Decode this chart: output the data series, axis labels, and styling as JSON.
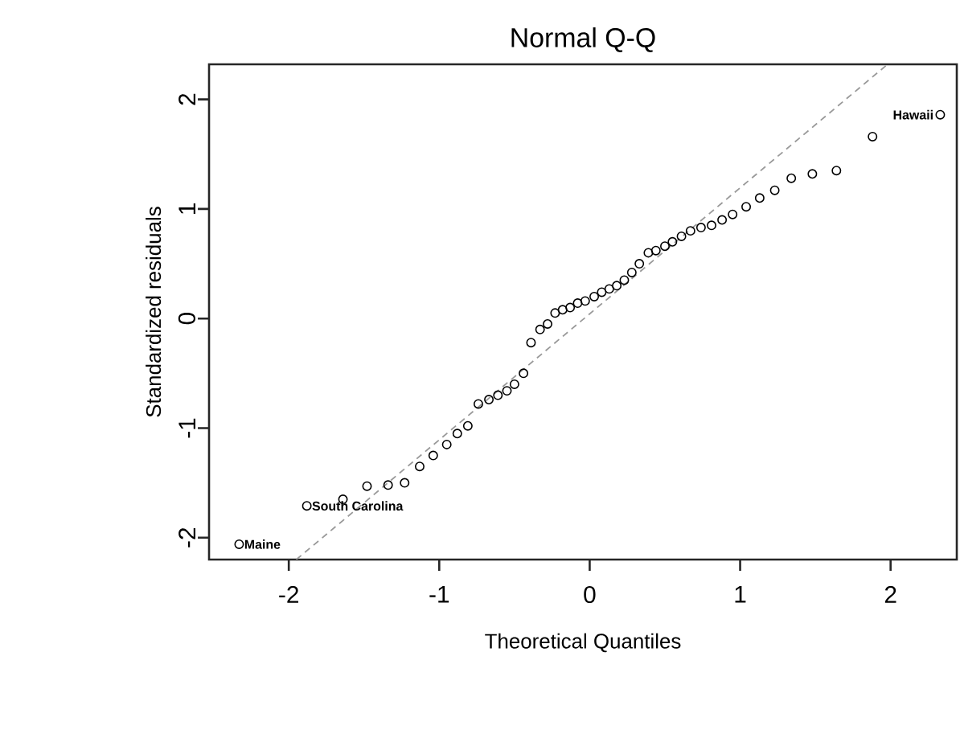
{
  "chart_data": {
    "type": "scatter",
    "title": "Normal Q-Q",
    "xlabel": "Theoretical Quantiles",
    "ylabel": "Standardized residuals",
    "xlim": [
      -2.53,
      2.44
    ],
    "ylim": [
      -2.2,
      2.32
    ],
    "xticks": [
      -2,
      -1,
      0,
      1,
      2
    ],
    "yticks": [
      -2,
      -1,
      0,
      1,
      2
    ],
    "series": [
      {
        "type": "line",
        "color": "#999999",
        "line_style": "dashed",
        "marker": "none",
        "x": [
          -1.95,
          1.98
        ],
        "values": [
          -2.2,
          2.32
        ]
      },
      {
        "color": "#000000",
        "marker": "circle",
        "x": [
          -2.33,
          -1.88,
          -1.64,
          -1.48,
          -1.34,
          -1.23,
          -1.13,
          -1.04,
          -0.95,
          -0.88,
          -0.81,
          -0.74,
          -0.67,
          -0.61,
          -0.55,
          -0.5,
          -0.44,
          -0.39,
          -0.33,
          -0.28,
          -0.23,
          -0.18,
          -0.13,
          -0.08,
          -0.03,
          0.03,
          0.08,
          0.13,
          0.18,
          0.23,
          0.28,
          0.33,
          0.39,
          0.44,
          0.5,
          0.55,
          0.61,
          0.67,
          0.74,
          0.81,
          0.88,
          0.95,
          1.04,
          1.13,
          1.23,
          1.34,
          1.48,
          1.64,
          1.88,
          2.33
        ],
        "values": [
          -2.06,
          -1.71,
          -1.65,
          -1.53,
          -1.52,
          -1.5,
          -1.35,
          -1.25,
          -1.15,
          -1.05,
          -0.98,
          -0.78,
          -0.74,
          -0.7,
          -0.66,
          -0.6,
          -0.5,
          -0.22,
          -0.1,
          -0.05,
          0.05,
          0.08,
          0.1,
          0.14,
          0.16,
          0.2,
          0.24,
          0.27,
          0.3,
          0.35,
          0.42,
          0.5,
          0.6,
          0.62,
          0.66,
          0.7,
          0.75,
          0.8,
          0.83,
          0.85,
          0.9,
          0.95,
          1.02,
          1.1,
          1.17,
          1.28,
          1.32,
          1.35,
          1.66,
          1.86
        ]
      }
    ],
    "annotations": [
      {
        "text": "Maine",
        "x": -2.33,
        "y": -2.06
      },
      {
        "text": "South Carolina",
        "x": -1.88,
        "y": -1.71
      },
      {
        "text": "Hawaii",
        "x": 2.33,
        "y": 1.86
      }
    ]
  }
}
